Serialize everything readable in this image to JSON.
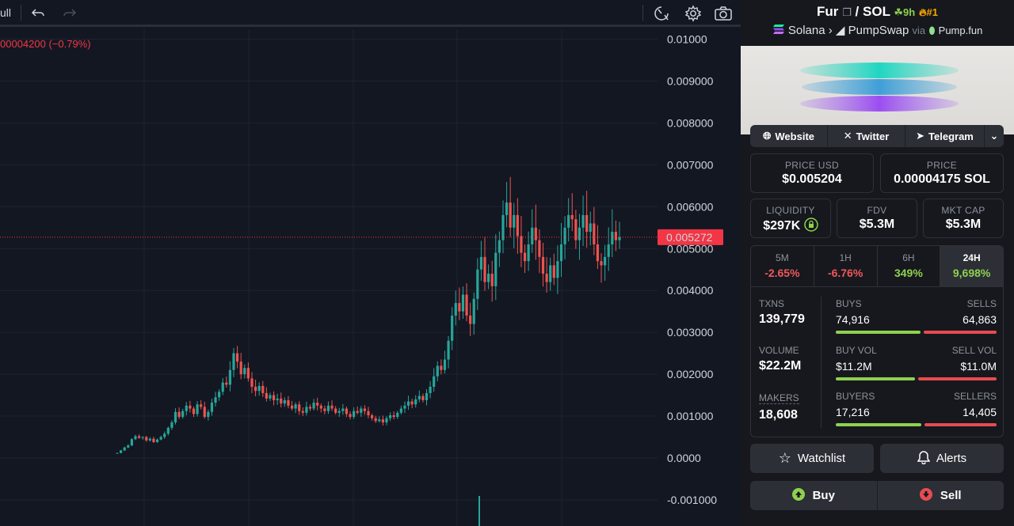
{
  "toolbar": {
    "indicator_label": "ull",
    "undo_icon": "undo-icon",
    "redo_icon": "redo-icon",
    "icons": [
      "speed-icon",
      "gear-icon",
      "camera-icon"
    ]
  },
  "chart": {
    "price_change": "00004200 (−0.79%)",
    "current_price_label": "0.005272",
    "colors": {
      "up": "#26a69a",
      "down": "#ef5350",
      "current": "#f23645"
    },
    "y_ticks": [
      "0.01000",
      "0.009000",
      "0.008000",
      "0.007000",
      "0.006000",
      "0.005000",
      "0.004000",
      "0.003000",
      "0.002000",
      "0.001000",
      "0.0000",
      "-0.001000"
    ]
  },
  "chart_data": {
    "type": "candlestick",
    "ylim": [
      -0.0011,
      0.0105
    ],
    "current_price": 0.005272,
    "close_series": [
      0.00012,
      0.00018,
      0.00025,
      0.0003,
      0.00045,
      0.00052,
      0.00048,
      0.0005,
      0.00042,
      0.00046,
      0.00038,
      0.00044,
      0.0005,
      0.00058,
      0.00072,
      0.00085,
      0.0011,
      0.00098,
      0.00112,
      0.00125,
      0.00118,
      0.00105,
      0.00128,
      0.00122,
      0.00098,
      0.0011,
      0.00132,
      0.00145,
      0.00158,
      0.0018,
      0.00175,
      0.0021,
      0.0025,
      0.0023,
      0.002,
      0.00215,
      0.0019,
      0.0017,
      0.0016,
      0.00172,
      0.00155,
      0.00142,
      0.0015,
      0.00138,
      0.00142,
      0.0013,
      0.00138,
      0.00125,
      0.00118,
      0.00128,
      0.00112,
      0.00108,
      0.00122,
      0.00118,
      0.00132,
      0.00125,
      0.00118,
      0.00112,
      0.00125,
      0.00118,
      0.00108,
      0.00112,
      0.00118,
      0.00105,
      0.00098,
      0.00112,
      0.00108,
      0.00118,
      0.00112,
      0.00102,
      0.00095,
      0.00088,
      0.00092,
      0.00085,
      0.00095,
      0.00102,
      0.00098,
      0.00108,
      0.00118,
      0.00125,
      0.00135,
      0.00128,
      0.0014,
      0.00148,
      0.00138,
      0.00155,
      0.0017,
      0.00195,
      0.0022,
      0.0021,
      0.00235,
      0.0028,
      0.0034,
      0.0037,
      0.0035,
      0.0039,
      0.0034,
      0.0032,
      0.0038,
      0.0045,
      0.0048,
      0.0042,
      0.0044,
      0.0041,
      0.0049,
      0.0052,
      0.0058,
      0.0061,
      0.0055,
      0.0058,
      0.0053,
      0.0049,
      0.0047,
      0.0051,
      0.0055,
      0.0052,
      0.0048,
      0.0044,
      0.0042,
      0.0046,
      0.0043,
      0.0047,
      0.0051,
      0.0055,
      0.0058,
      0.0057,
      0.0052,
      0.0055,
      0.0058,
      0.0054,
      0.0056,
      0.0051,
      0.0047,
      0.0046,
      0.0048,
      0.0051,
      0.0054,
      0.0052,
      0.00527
    ]
  },
  "pair": {
    "base": "Fur",
    "separator": "/",
    "quote": "SOL",
    "age": "9h",
    "rank": "#1",
    "chain": "Solana",
    "dex": "PumpSwap",
    "via": "via",
    "launchpad": "Pump.fun"
  },
  "links": {
    "website": "Website",
    "twitter": "Twitter",
    "telegram": "Telegram"
  },
  "stats": {
    "price_usd_label": "PRICE USD",
    "price_usd": "$0.005204",
    "price_label": "PRICE",
    "price_sol": "0.00004175 SOL",
    "liquidity_label": "LIQUIDITY",
    "liquidity": "$297K",
    "fdv_label": "FDV",
    "fdv": "$5.3M",
    "mktcap_label": "MKT CAP",
    "mktcap": "$5.3M"
  },
  "timeframes": [
    {
      "label": "5M",
      "value": "-2.65%",
      "dir": "neg"
    },
    {
      "label": "1H",
      "value": "-6.76%",
      "dir": "neg"
    },
    {
      "label": "6H",
      "value": "349%",
      "dir": "pos"
    },
    {
      "label": "24H",
      "value": "9,698%",
      "dir": "pos"
    }
  ],
  "metrics": {
    "txns_label": "TXNS",
    "txns": "139,779",
    "volume_label": "VOLUME",
    "volume": "$22.2M",
    "makers_label": "MAKERS",
    "makers": "18,608",
    "buys_label": "BUYS",
    "buys": "74,916",
    "sells_label": "SELLS",
    "sells": "64,863",
    "buy_ratio": 0.536,
    "buyvol_label": "BUY VOL",
    "buyvol": "$11.2M",
    "sellvol_label": "SELL VOL",
    "sellvol": "$11.0M",
    "vol_ratio": 0.504,
    "buyers_label": "BUYERS",
    "buyers": "17,216",
    "sellers_label": "SELLERS",
    "sellers": "14,405",
    "buyer_ratio": 0.544
  },
  "actions": {
    "watchlist": "Watchlist",
    "alerts": "Alerts",
    "buy": "Buy",
    "sell": "Sell"
  }
}
